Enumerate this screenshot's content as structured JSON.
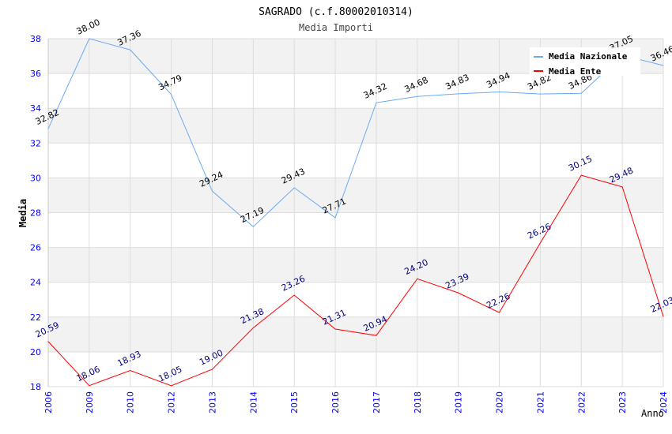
{
  "chart_data": {
    "type": "line",
    "title": "SAGRADO (c.f.80002010314)",
    "subtitle": "Media Importi",
    "xlabel": "Anno",
    "ylabel": "Media",
    "ylim": [
      18,
      38
    ],
    "yticks": [
      18,
      20,
      22,
      24,
      26,
      28,
      30,
      32,
      34,
      36,
      38
    ],
    "categories": [
      "2006",
      "2009",
      "2010",
      "2012",
      "2013",
      "2014",
      "2015",
      "2016",
      "2017",
      "2018",
      "2019",
      "2020",
      "2021",
      "2022",
      "2023",
      "2024"
    ],
    "legend_placement": "top-right",
    "series": [
      {
        "name": "Media Nazionale",
        "color": "#6aaaf0",
        "label_color": "#000000",
        "values": [
          32.82,
          38.0,
          37.36,
          34.79,
          29.24,
          27.19,
          29.43,
          27.71,
          34.32,
          34.68,
          34.83,
          34.94,
          34.82,
          34.86,
          37.05,
          36.46
        ]
      },
      {
        "name": "Media Ente",
        "color": "#ff0000",
        "label_color": "#000080",
        "values": [
          20.59,
          18.06,
          18.93,
          18.05,
          19.0,
          21.38,
          23.26,
          21.31,
          20.94,
          24.2,
          23.39,
          22.26,
          26.26,
          30.15,
          29.48,
          22.03
        ]
      }
    ]
  }
}
